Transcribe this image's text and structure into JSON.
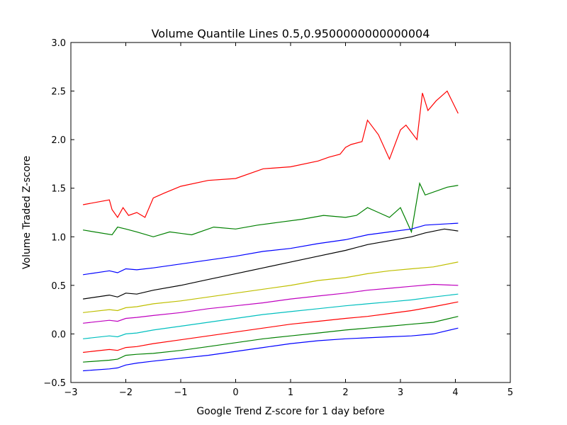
{
  "chart_data": {
    "type": "line",
    "title": "Volume Quantile Lines 0.5,0.9500000000000004",
    "xlabel": "Google Trend Z-score for 1 day before",
    "ylabel": "Volume Traded Z-score",
    "xlim": [
      -3,
      5
    ],
    "ylim": [
      -0.5,
      3.0
    ],
    "xticks": [
      "−3",
      "−2",
      "−1",
      "0",
      "1",
      "2",
      "3",
      "4",
      "5"
    ],
    "yticks": [
      "−0.5",
      "0.0",
      "0.5",
      "1.0",
      "1.5",
      "2.0",
      "2.5",
      "3.0"
    ],
    "grid": false,
    "legend": "none",
    "series": [
      {
        "color": "#ff0000",
        "x": [
          -2.78,
          -2.3,
          -2.25,
          -2.15,
          -2.05,
          -1.95,
          -1.8,
          -1.65,
          -1.5,
          -1.3,
          -1.0,
          -0.5,
          0.0,
          0.5,
          1.0,
          1.5,
          1.7,
          1.9,
          2.0,
          2.1,
          2.3,
          2.4,
          2.6,
          2.8,
          3.0,
          3.1,
          3.3,
          3.4,
          3.5,
          3.65,
          3.85,
          4.05
        ],
        "values": [
          1.33,
          1.38,
          1.28,
          1.2,
          1.3,
          1.22,
          1.25,
          1.2,
          1.4,
          1.45,
          1.52,
          1.58,
          1.6,
          1.7,
          1.72,
          1.78,
          1.82,
          1.85,
          1.92,
          1.95,
          1.98,
          2.2,
          2.05,
          1.8,
          2.1,
          2.15,
          2.0,
          2.48,
          2.3,
          2.4,
          2.5,
          2.27
        ]
      },
      {
        "color": "#008000",
        "x": [
          -2.78,
          -2.25,
          -2.15,
          -2.0,
          -1.8,
          -1.5,
          -1.2,
          -0.8,
          -0.4,
          0.0,
          0.4,
          0.8,
          1.2,
          1.6,
          2.0,
          2.2,
          2.4,
          2.6,
          2.8,
          3.0,
          3.2,
          3.35,
          3.45,
          3.85,
          4.05
        ],
        "values": [
          1.07,
          1.02,
          1.1,
          1.08,
          1.05,
          1.0,
          1.05,
          1.02,
          1.1,
          1.08,
          1.12,
          1.15,
          1.18,
          1.22,
          1.2,
          1.22,
          1.3,
          1.25,
          1.2,
          1.3,
          1.05,
          1.55,
          1.43,
          1.51,
          1.53
        ]
      },
      {
        "color": "#0000ff",
        "x": [
          -2.78,
          -2.3,
          -2.15,
          -2.0,
          -1.8,
          -1.5,
          -1.0,
          -0.5,
          0.0,
          0.5,
          1.0,
          1.5,
          2.0,
          2.4,
          2.8,
          3.2,
          3.45,
          4.05
        ],
        "values": [
          0.61,
          0.65,
          0.63,
          0.67,
          0.66,
          0.68,
          0.72,
          0.76,
          0.8,
          0.85,
          0.88,
          0.93,
          0.97,
          1.02,
          1.05,
          1.08,
          1.12,
          1.14
        ]
      },
      {
        "color": "#000000",
        "x": [
          -2.78,
          -2.3,
          -2.15,
          -2.0,
          -1.8,
          -1.5,
          -1.0,
          -0.5,
          0.0,
          0.5,
          1.0,
          1.5,
          2.0,
          2.4,
          2.8,
          3.2,
          3.45,
          3.8,
          4.05
        ],
        "values": [
          0.36,
          0.4,
          0.38,
          0.42,
          0.41,
          0.45,
          0.5,
          0.56,
          0.62,
          0.68,
          0.74,
          0.8,
          0.86,
          0.92,
          0.96,
          1.0,
          1.04,
          1.08,
          1.06
        ]
      },
      {
        "color": "#bfbf00",
        "x": [
          -2.78,
          -2.3,
          -2.15,
          -2.0,
          -1.8,
          -1.5,
          -1.0,
          -0.5,
          0.0,
          0.5,
          1.0,
          1.5,
          2.0,
          2.4,
          2.8,
          3.2,
          3.6,
          4.05
        ],
        "values": [
          0.22,
          0.25,
          0.24,
          0.27,
          0.28,
          0.31,
          0.34,
          0.38,
          0.42,
          0.46,
          0.5,
          0.55,
          0.58,
          0.62,
          0.65,
          0.67,
          0.69,
          0.74
        ]
      },
      {
        "color": "#bf00bf",
        "x": [
          -2.78,
          -2.3,
          -2.15,
          -2.0,
          -1.8,
          -1.5,
          -1.0,
          -0.5,
          0.0,
          0.5,
          1.0,
          1.5,
          2.0,
          2.4,
          2.8,
          3.2,
          3.6,
          4.05
        ],
        "values": [
          0.11,
          0.14,
          0.13,
          0.16,
          0.17,
          0.19,
          0.22,
          0.26,
          0.29,
          0.32,
          0.36,
          0.39,
          0.42,
          0.45,
          0.47,
          0.49,
          0.51,
          0.5
        ]
      },
      {
        "color": "#00bfbf",
        "x": [
          -2.78,
          -2.3,
          -2.15,
          -2.0,
          -1.8,
          -1.5,
          -1.0,
          -0.5,
          0.0,
          0.5,
          1.0,
          1.5,
          2.0,
          2.4,
          2.8,
          3.2,
          3.6,
          4.05
        ],
        "values": [
          -0.05,
          -0.02,
          -0.03,
          0.0,
          0.01,
          0.04,
          0.08,
          0.12,
          0.16,
          0.2,
          0.23,
          0.26,
          0.29,
          0.31,
          0.33,
          0.35,
          0.38,
          0.41
        ]
      },
      {
        "color": "#ff0000",
        "x": [
          -2.78,
          -2.3,
          -2.15,
          -2.0,
          -1.8,
          -1.5,
          -1.0,
          -0.5,
          0.0,
          0.5,
          1.0,
          1.5,
          2.0,
          2.4,
          2.8,
          3.2,
          3.6,
          4.05
        ],
        "values": [
          -0.19,
          -0.16,
          -0.17,
          -0.14,
          -0.13,
          -0.1,
          -0.06,
          -0.02,
          0.02,
          0.06,
          0.1,
          0.13,
          0.16,
          0.18,
          0.21,
          0.24,
          0.28,
          0.33
        ]
      },
      {
        "color": "#008000",
        "x": [
          -2.78,
          -2.3,
          -2.15,
          -2.0,
          -1.8,
          -1.5,
          -1.0,
          -0.5,
          0.0,
          0.5,
          1.0,
          1.5,
          2.0,
          2.4,
          2.8,
          3.2,
          3.6,
          4.05
        ],
        "values": [
          -0.29,
          -0.27,
          -0.26,
          -0.22,
          -0.21,
          -0.2,
          -0.17,
          -0.13,
          -0.09,
          -0.05,
          -0.02,
          0.01,
          0.04,
          0.06,
          0.08,
          0.1,
          0.12,
          0.18
        ]
      },
      {
        "color": "#0000ff",
        "x": [
          -2.78,
          -2.3,
          -2.15,
          -2.0,
          -1.8,
          -1.5,
          -1.0,
          -0.5,
          0.0,
          0.5,
          1.0,
          1.5,
          2.0,
          2.4,
          2.8,
          3.2,
          3.6,
          4.05
        ],
        "values": [
          -0.38,
          -0.36,
          -0.35,
          -0.32,
          -0.3,
          -0.28,
          -0.25,
          -0.22,
          -0.18,
          -0.14,
          -0.1,
          -0.07,
          -0.05,
          -0.04,
          -0.03,
          -0.02,
          0.0,
          0.06
        ]
      }
    ]
  }
}
